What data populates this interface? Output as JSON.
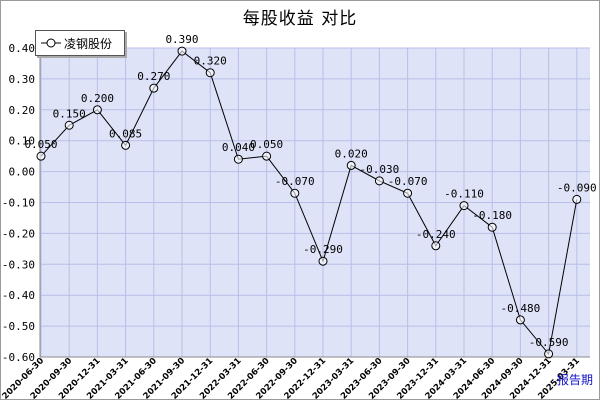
{
  "title": "每股收益  对比",
  "legend": {
    "label": "凌钢股份"
  },
  "period_label": "报告期",
  "chart_data": {
    "type": "line",
    "title": "每股收益  对比",
    "categories": [
      "2020-06-30",
      "2020-09-30",
      "2020-12-31",
      "2021-03-31",
      "2021-06-30",
      "2021-09-30",
      "2021-12-31",
      "2022-03-31",
      "2022-06-30",
      "2022-09-30",
      "2022-12-31",
      "2023-03-31",
      "2023-06-30",
      "2023-09-30",
      "2023-12-31",
      "2024-03-31",
      "2024-06-30",
      "2024-09-30",
      "2024-12-31",
      "2025-03-31"
    ],
    "series": [
      {
        "name": "凌钢股份",
        "values": [
          0.05,
          0.15,
          0.2,
          0.085,
          0.27,
          0.39,
          0.32,
          0.04,
          0.05,
          -0.07,
          -0.29,
          0.02,
          -0.03,
          -0.07,
          -0.24,
          -0.11,
          -0.18,
          -0.48,
          -0.59,
          -0.09
        ],
        "labels": [
          "0.050",
          "0.150",
          "0.200",
          "0.085",
          "0.270",
          "0.390",
          "0.320",
          "0.040",
          "0.050",
          "-0.070",
          "-0.290",
          "0.020",
          "-0.030",
          "-0.070",
          "-0.240",
          "-0.110",
          "-0.180",
          "-0.480",
          "-0.590",
          "-0.090"
        ]
      }
    ],
    "yticks": [
      "0.40",
      "0.30",
      "0.20",
      "0.10",
      "0.00",
      "-0.10",
      "-0.20",
      "-0.30",
      "-0.40",
      "-0.50",
      "-0.60"
    ],
    "ylim": [
      -0.6,
      0.4
    ],
    "grid": true,
    "legend_position": "top-left",
    "colors": {
      "plot_bg": "#dfe3f8",
      "grid": "#b8bfe8",
      "line": "#000000",
      "period_link": "#1010c8"
    }
  }
}
